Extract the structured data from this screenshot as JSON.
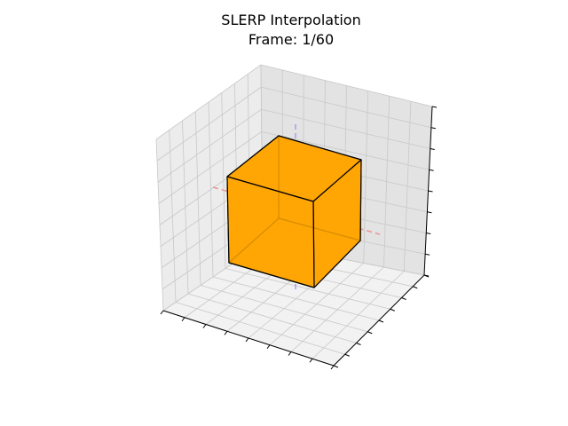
{
  "figure": {
    "title": "SLERP Interpolation",
    "subtitle": "Frame: 1/60"
  },
  "chart_data": {
    "type": "3d-wireframe",
    "title": "SLERP Interpolation",
    "subtitle": "Frame: 1/60",
    "frame": {
      "current": 1,
      "total": 60
    },
    "grid": true,
    "tick_labels_shown": false,
    "reference_axes": [
      {
        "axis": "x",
        "color": "#f08080",
        "style": "dashed"
      },
      {
        "axis": "z",
        "color": "#9a8ae8",
        "style": "dashed"
      }
    ],
    "cube": {
      "face_color": "#ffa500",
      "edge_color": "#000000",
      "opacity": 0.85
    },
    "colors": {
      "pane_left": "#ececec",
      "pane_right": "#e3e3e3",
      "pane_floor": "#f2f2f2",
      "gridline": "#c8c8c8"
    }
  }
}
